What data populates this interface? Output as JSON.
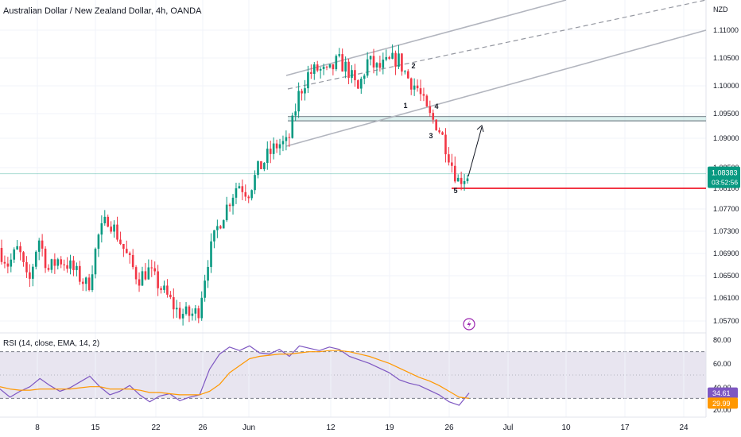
{
  "header": {
    "title": "Australian Dollar / New Zealand Dollar, 4h, OANDA",
    "currency": "NZD"
  },
  "price_labels": {
    "last_price": "1.08383",
    "countdown": "03:52:56",
    "hidden_level": "1.08100"
  },
  "rsi_panel": {
    "title": "RSI (14, close, EMA, 14, 2)",
    "rsi_value": "34.61",
    "signal_value": "29.99"
  },
  "wave_labels": [
    "1",
    "2",
    "3",
    "4",
    "5"
  ],
  "colors": {
    "up": "#089981",
    "down": "#f23645",
    "rsi_line": "#7e57c2",
    "rsi_ma": "#ff9800",
    "support_line": "#f23645",
    "channel": "#b2b5be",
    "last_price_bg": "#089981"
  },
  "chart_data": [
    {
      "type": "candlestick",
      "title": "Australian Dollar / New Zealand Dollar, 4h, OANDA",
      "x_ticks": [
        "8",
        "15",
        "22",
        "26",
        "Jun",
        "12",
        "19",
        "26",
        "Jul",
        "10",
        "17",
        "24"
      ],
      "y_ticks": [
        "1.11000",
        "1.10500",
        "1.10000",
        "1.09500",
        "1.09000",
        "1.08500",
        "1.08100",
        "1.07700",
        "1.07300",
        "1.06900",
        "1.06500",
        "1.06100",
        "1.05700"
      ],
      "ylim": [
        1.0545,
        1.1155
      ],
      "last_price": 1.08383,
      "support_level": 1.081,
      "zone": [
        1.0937,
        1.0944
      ],
      "path_points": [
        1.07,
        1.067,
        1.07,
        1.063,
        1.072,
        1.066,
        1.068,
        1.067,
        1.065,
        1.063,
        1.072,
        1.0755,
        1.072,
        1.068,
        1.0645,
        1.066,
        1.0635,
        1.061,
        1.0585,
        1.058,
        1.0585,
        1.068,
        1.074,
        1.078,
        1.082,
        1.08,
        1.0845,
        1.087,
        1.089,
        1.089,
        1.098,
        1.102,
        1.103,
        1.102,
        1.1045,
        1.103,
        1.099,
        1.1045,
        1.103,
        1.104,
        1.105,
        1.1015,
        1.0995,
        1.095,
        1.0925,
        1.088,
        1.0825,
        1.0835
      ]
    },
    {
      "type": "line",
      "title": "RSI (14, close, EMA, 14, 2)",
      "y_ticks": [
        "80.00",
        "60.00",
        "40.00",
        "20.00"
      ],
      "ylim": [
        20,
        80
      ],
      "bands": [
        30,
        50,
        70
      ],
      "series": [
        {
          "name": "RSI",
          "values": [
            38,
            31,
            36,
            40,
            47,
            41,
            36,
            39,
            44,
            49,
            40,
            33,
            36,
            41,
            33,
            27,
            32,
            34,
            28,
            31,
            33,
            55,
            68,
            74,
            71,
            75,
            69,
            68,
            72,
            66,
            75,
            73,
            71,
            74,
            72,
            66,
            63,
            60,
            56,
            52,
            46,
            43,
            41,
            37,
            33,
            27,
            24,
            34.61
          ]
        },
        {
          "name": "EMA",
          "values": [
            40,
            38,
            37,
            37,
            38,
            38,
            38,
            38,
            39,
            40,
            40,
            38,
            38,
            38,
            37,
            35,
            35,
            34,
            33,
            33,
            33,
            36,
            42,
            52,
            58,
            64,
            66,
            67,
            68,
            68,
            69,
            70,
            70,
            71,
            71,
            70,
            68,
            66,
            63,
            60,
            56,
            52,
            48,
            45,
            41,
            36,
            31,
            29.99
          ]
        }
      ]
    }
  ]
}
